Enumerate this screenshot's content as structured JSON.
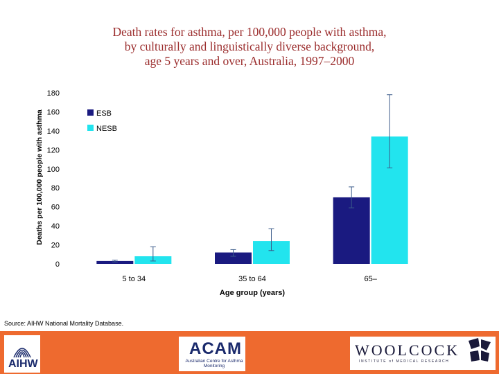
{
  "title_lines": [
    "Death rates for asthma, per 100,000 people with asthma,",
    "by culturally and linguistically diverse background,",
    "age 5 years and over, Australia, 1997–2000"
  ],
  "source": "Source: AIHW National Mortality Database.",
  "logos": {
    "aihw": "AIHW",
    "acam": "ACAM",
    "acam_sub": "Australian Centre for Asthma Monitoring",
    "woolcock": "WOOLCOCK",
    "woolcock_sub": "INSTITUTE of MEDICAL RESEARCH"
  },
  "colors": {
    "esb": "#1a1a80",
    "nesb": "#22e4ee",
    "error_bar": "#3a5a8a",
    "footer": "#ee6a2f"
  },
  "chart_data": {
    "type": "bar",
    "title": "Death rates for asthma, per 100,000 people with asthma, by culturally and linguistically diverse background, age 5 years and over, Australia, 1997–2000",
    "xlabel": "Age group (years)",
    "ylabel": "Deaths per 100,000 people with asthma",
    "categories": [
      "5 to 34",
      "35 to 64",
      "65–"
    ],
    "series": [
      {
        "name": "ESB",
        "values": [
          3,
          12,
          70
        ],
        "error_low": [
          2,
          8,
          59
        ],
        "error_high": [
          4,
          15,
          81
        ]
      },
      {
        "name": "NESB",
        "values": [
          8,
          24,
          134
        ],
        "error_low": [
          3,
          14,
          101
        ],
        "error_high": [
          18,
          37,
          178
        ]
      }
    ],
    "ylim": [
      0,
      180
    ],
    "yticks": [
      0,
      20,
      40,
      60,
      80,
      100,
      120,
      140,
      160,
      180
    ],
    "grid": false,
    "legend_position": "top-left"
  }
}
